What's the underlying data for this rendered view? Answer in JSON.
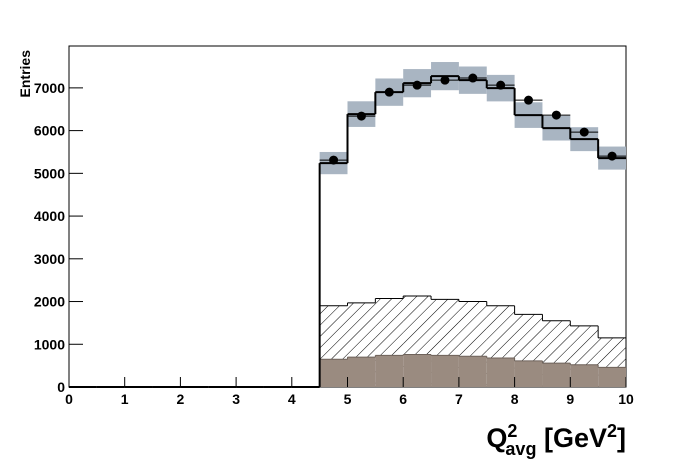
{
  "chart_data": {
    "type": "histogram",
    "ylabel": "Entries",
    "xlabel_parts": [
      {
        "text": "Q"
      },
      {
        "text": "2",
        "pos": "sup"
      },
      {
        "text": "avg",
        "pos": "sub"
      },
      {
        "text": " [GeV"
      },
      {
        "text": "2",
        "pos": "sup"
      },
      {
        "text": "]"
      }
    ],
    "bins": [
      0,
      0.5,
      1,
      1.5,
      2,
      2.5,
      3,
      3.5,
      4,
      4.5,
      5,
      5.5,
      6,
      6.5,
      7,
      7.5,
      8,
      8.5,
      9,
      9.5,
      10
    ],
    "xlim": [
      0,
      10
    ],
    "xticks": [
      0,
      1,
      2,
      3,
      4,
      5,
      6,
      7,
      8,
      9,
      10
    ],
    "ylim": [
      0,
      7980
    ],
    "yticks": [
      0,
      1000,
      2000,
      3000,
      4000,
      5000,
      6000,
      7000
    ],
    "series": [
      {
        "style": "hatched",
        "color": "#000000",
        "values": [
          0,
          0,
          0,
          0,
          0,
          0,
          0,
          0,
          0,
          1900,
          1970,
          2070,
          2130,
          2050,
          2000,
          1900,
          1700,
          1550,
          1430,
          1150
        ]
      },
      {
        "style": "filled",
        "color": "#9a8b80",
        "values": [
          0,
          0,
          0,
          0,
          0,
          0,
          0,
          0,
          0,
          650,
          700,
          740,
          760,
          740,
          720,
          680,
          610,
          560,
          520,
          460
        ]
      },
      {
        "style": "step",
        "color": "#000000",
        "band_color": "#a9b5c2",
        "values": [
          0,
          0,
          0,
          0,
          0,
          0,
          0,
          0,
          0,
          5240,
          6386,
          6900,
          7110,
          7275,
          7180,
          6994,
          6363,
          6058,
          5800,
          5357
        ],
        "errors": [
          0,
          0,
          0,
          0,
          0,
          0,
          0,
          0,
          0,
          260,
          300,
          320,
          330,
          330,
          320,
          310,
          300,
          290,
          280,
          270
        ]
      },
      {
        "style": "points",
        "color": "#000000",
        "values": [
          null,
          null,
          null,
          null,
          null,
          null,
          null,
          null,
          null,
          5310,
          6340,
          6900,
          7064,
          7180,
          7230,
          7064,
          6713,
          6363,
          5965,
          5404
        ]
      }
    ]
  }
}
